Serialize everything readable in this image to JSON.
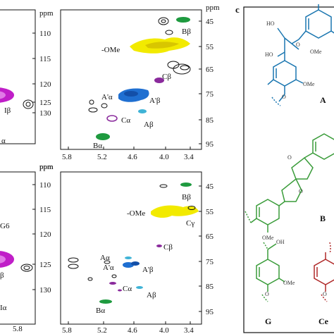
{
  "figure": {
    "panel_c_letter": "c",
    "unit": "ppm",
    "left_panels": {
      "top": {
        "y_ticks": [
          "110",
          "115",
          "120",
          "125",
          "130"
        ],
        "x_ticks": [],
        "labels": [
          "Iβ",
          "α"
        ]
      },
      "bottom": {
        "y_ticks": [
          "110",
          "115",
          "120",
          "125",
          "130"
        ],
        "x_ticks": [
          "5.8"
        ],
        "labels": [
          "G6",
          "β",
          "Iα"
        ]
      }
    },
    "right_panels": {
      "top": {
        "x_ticks": [
          "5.8",
          "5.2",
          "4.6",
          "4.0",
          "3.4"
        ],
        "y_ticks": [
          "45",
          "55",
          "65",
          "75",
          "85",
          "95"
        ],
        "labels": [
          "Bβ",
          "-OMe",
          "Cβ",
          "A'α",
          "A'β",
          "Cα",
          "Aβ",
          "Bα"
        ]
      },
      "bottom": {
        "x_ticks": [
          "5.8",
          "5.2",
          "4.6",
          "4.0",
          "3.4"
        ],
        "y_ticks": [
          "45",
          "55",
          "65",
          "75",
          "85",
          "95"
        ],
        "labels": [
          "Bβ",
          "-OMe",
          "Cγ",
          "Cβ",
          "Aα",
          "A'α",
          "A'β",
          "Cα",
          "Aβ",
          "Bα"
        ]
      }
    },
    "structures": {
      "A": {
        "label": "A",
        "atoms": [
          "HO",
          "HO",
          "OMe",
          "OMe",
          "O",
          "O"
        ]
      },
      "B": {
        "label": "B",
        "atoms": [
          "O",
          "O",
          "OMe"
        ]
      },
      "G": {
        "label": "G",
        "atoms": [
          "OH",
          "OMe",
          "O"
        ]
      },
      "Ce": {
        "label": "Ce",
        "atoms": [
          "O"
        ]
      }
    },
    "colors": {
      "blue": "#1f6fd1",
      "yellow": "#f2ea00",
      "magenta": "#c01ec8",
      "green": "#1e9a3f",
      "purple": "#8a2a9c",
      "black": "#111111",
      "teal_struct": "#1a76b0",
      "green_struct": "#3a9c3a",
      "red_struct": "#b02a2a"
    }
  }
}
